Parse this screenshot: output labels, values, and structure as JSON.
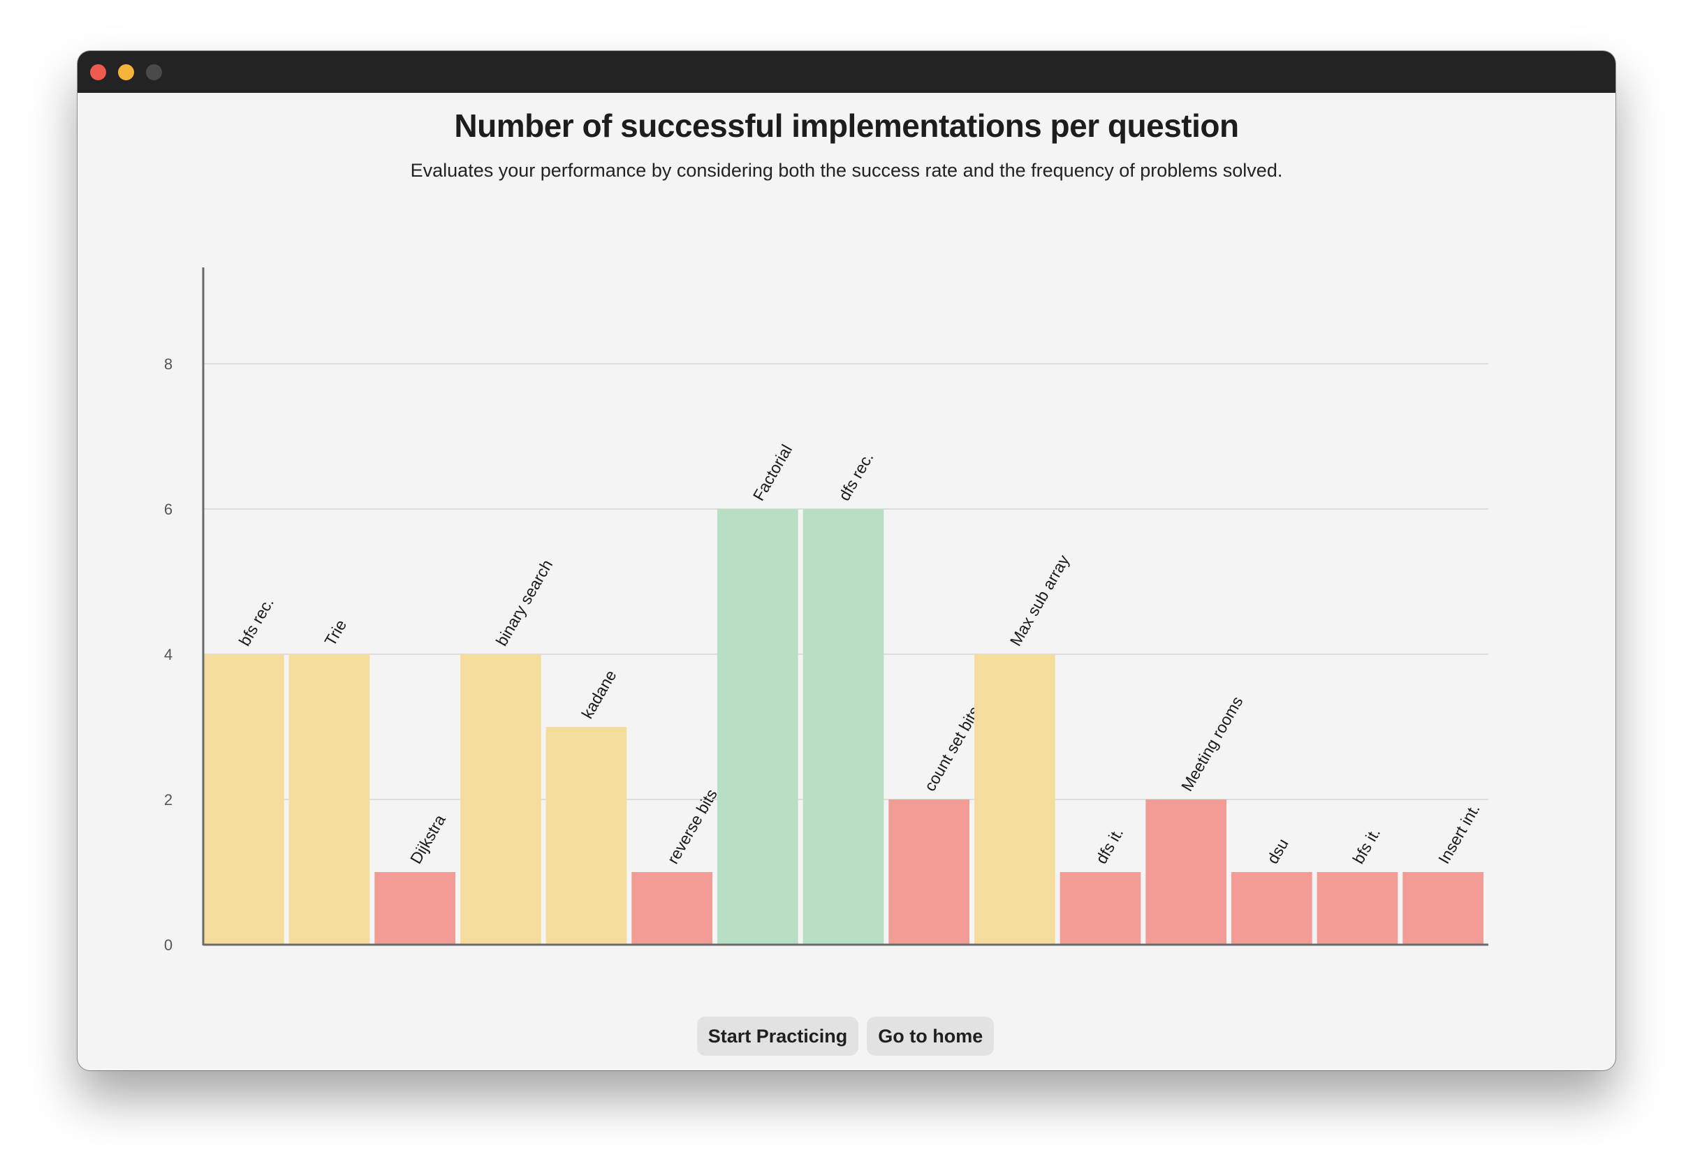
{
  "window": {
    "controls": {
      "close_color": "#ef5b4f",
      "minimize_color": "#f5b53a",
      "maximize_color": "#4a4a4a"
    }
  },
  "header": {
    "title": "Number of successful implementations per question",
    "subtitle": "Evaluates your performance by considering both the success rate and the frequency of problems solved."
  },
  "chart_data": {
    "type": "bar",
    "title": "Number of successful implementations per question",
    "subtitle": "Evaluates your performance by considering both the success rate and the frequency of problems solved.",
    "xlabel": "",
    "ylabel": "",
    "ylim": [
      0,
      10
    ],
    "yticks": [
      0,
      2,
      4,
      6,
      8
    ],
    "grid": true,
    "legend": "none",
    "colors": {
      "green": "#b8dec4",
      "yellow": "#f4dc9d",
      "red": "#f39b95"
    },
    "categories": [
      "bfs rec.",
      "Trie",
      "Dijkstra",
      "binary search",
      "kadane",
      "reverse bits",
      "Factorial",
      "dfs rec.",
      "count set bits",
      "Max sub array",
      "dfs it.",
      "Meeting rooms",
      "dsu",
      "bfs it.",
      "Insert int."
    ],
    "values": [
      4,
      4,
      1,
      4,
      3,
      1,
      6,
      6,
      2,
      4,
      1,
      2,
      1,
      1,
      1
    ],
    "bar_colors": [
      "yellow",
      "yellow",
      "red",
      "yellow",
      "yellow",
      "red",
      "green",
      "green",
      "red",
      "yellow",
      "red",
      "red",
      "red",
      "red",
      "red"
    ]
  },
  "actions": {
    "start_label": "Start Practicing",
    "home_label": "Go to home"
  }
}
